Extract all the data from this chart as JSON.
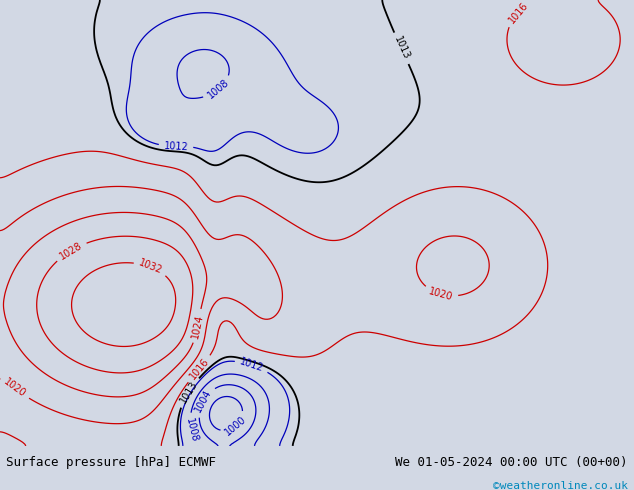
{
  "title_left": "Surface pressure [hPa] ECMWF",
  "title_right": "We 01-05-2024 00:00 UTC (00+00)",
  "copyright": "©weatheronline.co.uk",
  "bg_color": "#d2d8e4",
  "land_color": "#b8e090",
  "mountain_color": "#a0a0a0",
  "fig_width": 6.34,
  "fig_height": 4.9,
  "dpi": 100,
  "font_color_black": "#000000",
  "font_color_blue": "#0000bb",
  "font_color_red": "#cc0000",
  "font_color_cyan": "#0088bb",
  "bottom_bar_color": "#d8d8d8",
  "contour_black": "#000000",
  "contour_blue": "#0000bb",
  "contour_red": "#cc0000",
  "lon_min": -115,
  "lon_max": 20,
  "lat_min": -62,
  "lat_max": 17
}
